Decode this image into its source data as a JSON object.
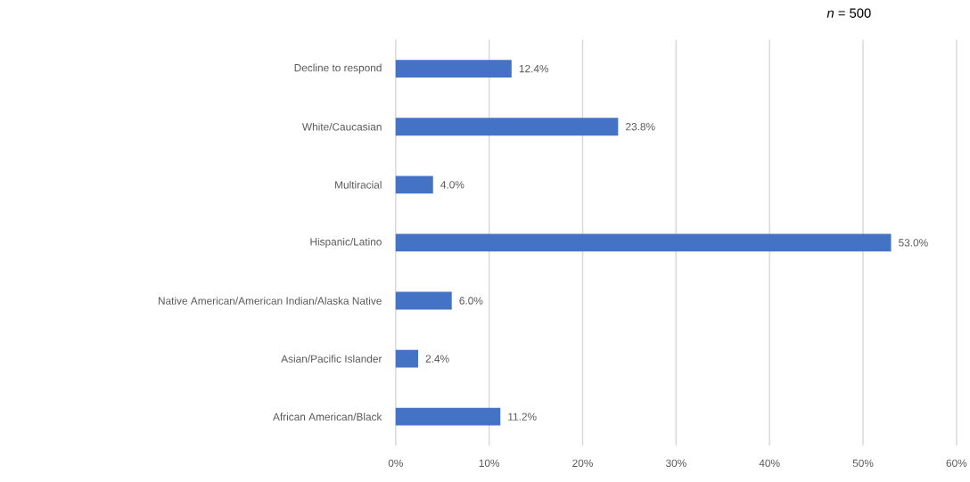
{
  "chart_data": {
    "type": "bar",
    "orientation": "horizontal",
    "categories": [
      "Decline to respond",
      "White/Caucasian",
      "Multiracial",
      "Hispanic/Latino",
      "Native American/American Indian/Alaska Native",
      "Asian/Pacific Islander",
      "African American/Black"
    ],
    "values": [
      12.4,
      23.8,
      4.0,
      53.0,
      6.0,
      2.4,
      11.2
    ],
    "value_labels": [
      "12.4%",
      "23.8%",
      "4.0%",
      "53.0%",
      "6.0%",
      "2.4%",
      "11.2%"
    ],
    "color": "#4472c4",
    "xlim": [
      0,
      60
    ],
    "xticks": [
      {
        "value": 0,
        "label": "0%"
      },
      {
        "value": 10,
        "label": "10%"
      },
      {
        "value": 20,
        "label": "20%"
      },
      {
        "value": 30,
        "label": "30%"
      },
      {
        "value": 40,
        "label": "40%"
      },
      {
        "value": 50,
        "label": "50%"
      },
      {
        "value": 60,
        "label": "60%"
      }
    ],
    "grid": "x",
    "annotations": [
      "*n* = 500"
    ]
  }
}
